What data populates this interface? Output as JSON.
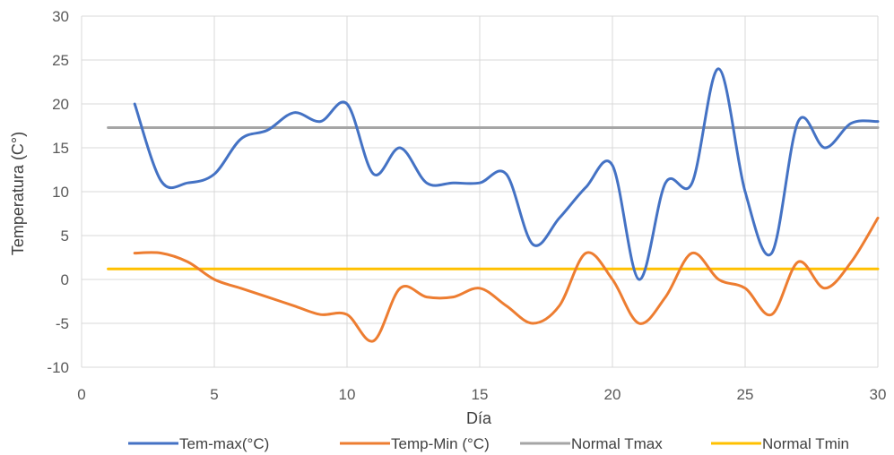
{
  "chart_data": {
    "type": "line",
    "title": "",
    "xlabel": "Día",
    "ylabel": "Temperatura (C°)",
    "xlim": [
      0,
      30
    ],
    "ylim": [
      -10,
      30
    ],
    "x_ticks": [
      0,
      5,
      10,
      15,
      20,
      25,
      30
    ],
    "y_ticks": [
      -10,
      -5,
      0,
      5,
      10,
      15,
      20,
      25,
      30
    ],
    "grid": true,
    "smooth": true,
    "legend_position": "bottom",
    "series": [
      {
        "name": "Tem-max(°C)",
        "color": "#4472C4",
        "x": [
          2,
          3,
          4,
          5,
          6,
          7,
          8,
          9,
          10,
          11,
          12,
          13,
          14,
          15,
          16,
          17,
          18,
          19,
          20,
          21,
          22,
          23,
          24,
          25,
          26,
          27,
          28,
          29,
          30
        ],
        "values": [
          20,
          11.2,
          11,
          12,
          16,
          17,
          19,
          18,
          20,
          12,
          15,
          11,
          11,
          11,
          12,
          4,
          7,
          10.5,
          13,
          0,
          11,
          11,
          24,
          10,
          3,
          18,
          15,
          17.8,
          18
        ]
      },
      {
        "name": "Temp-Min (°C)",
        "color": "#ED7D31",
        "x": [
          2,
          3,
          4,
          5,
          6,
          7,
          8,
          9,
          10,
          11,
          12,
          13,
          14,
          15,
          16,
          17,
          18,
          19,
          20,
          21,
          22,
          23,
          24,
          25,
          26,
          27,
          28,
          29,
          30
        ],
        "values": [
          3,
          3,
          2,
          0,
          -1,
          -2,
          -3,
          -4,
          -4,
          -7,
          -1,
          -2,
          -2,
          -1,
          -3,
          -5,
          -3,
          3,
          0,
          -5,
          -2,
          3,
          0,
          -1,
          -4,
          2,
          -1,
          2,
          7
        ]
      },
      {
        "name": "Normal Tmax",
        "color": "#A5A5A5",
        "x": [
          1,
          30
        ],
        "values": [
          17.3,
          17.3
        ]
      },
      {
        "name": "Normal Tmin",
        "color": "#FFC000",
        "x": [
          1,
          30
        ],
        "values": [
          1.2,
          1.2
        ]
      }
    ]
  }
}
